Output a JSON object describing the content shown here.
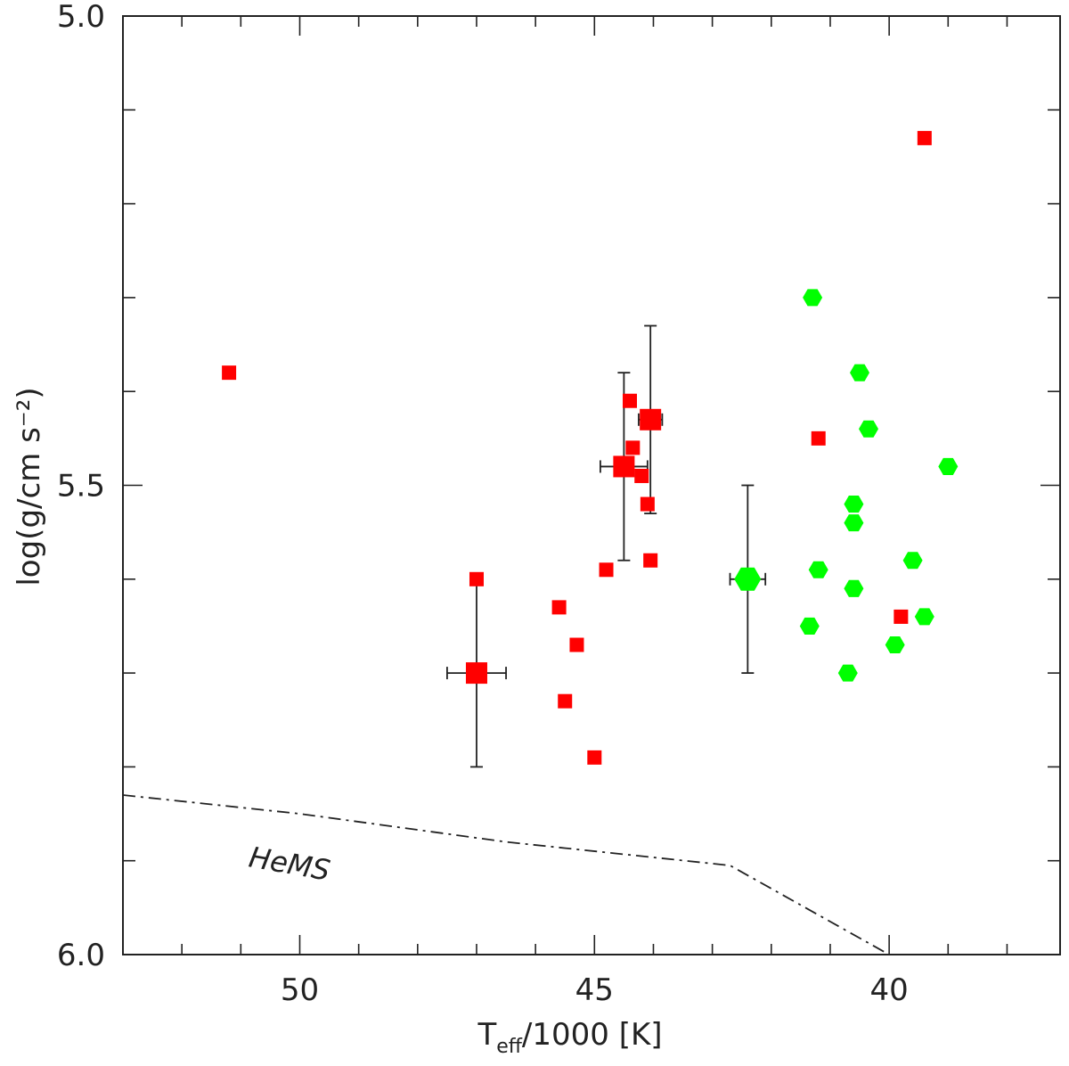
{
  "chart_data": {
    "type": "scatter",
    "title": "",
    "xlabel": {
      "main": "T",
      "sub": "eff",
      "rest": "/1000 [K]"
    },
    "ylabel": "log(g/cm s⁻²)",
    "xlim": [
      53.0,
      37.1
    ],
    "ylim": [
      6.0,
      5.0
    ],
    "x_ticks": [
      "50",
      "45",
      "40"
    ],
    "y_ticks": [
      "5.0",
      "5.5",
      "6.0"
    ],
    "grid": false,
    "series": [
      {
        "name": "red squares",
        "marker": "square",
        "color": "#ff0000",
        "points": [
          {
            "x": 51.2,
            "y": 5.38
          },
          {
            "x": 47.0,
            "y": 5.6
          },
          {
            "x": 45.6,
            "y": 5.63
          },
          {
            "x": 45.3,
            "y": 5.67
          },
          {
            "x": 45.5,
            "y": 5.73
          },
          {
            "x": 45.0,
            "y": 5.79
          },
          {
            "x": 44.8,
            "y": 5.59
          },
          {
            "x": 44.4,
            "y": 5.41
          },
          {
            "x": 44.35,
            "y": 5.46
          },
          {
            "x": 44.2,
            "y": 5.49
          },
          {
            "x": 44.1,
            "y": 5.52
          },
          {
            "x": 44.05,
            "y": 5.58
          },
          {
            "x": 44.05,
            "y": 5.43
          },
          {
            "x": 41.2,
            "y": 5.45
          },
          {
            "x": 39.8,
            "y": 5.64
          },
          {
            "x": 39.4,
            "y": 5.13
          }
        ]
      },
      {
        "name": "green hexagons",
        "marker": "hexagon",
        "color": "#00ff00",
        "points": [
          {
            "x": 41.3,
            "y": 5.3
          },
          {
            "x": 40.5,
            "y": 5.38
          },
          {
            "x": 40.35,
            "y": 5.44
          },
          {
            "x": 41.2,
            "y": 5.59
          },
          {
            "x": 40.6,
            "y": 5.52
          },
          {
            "x": 40.6,
            "y": 5.54
          },
          {
            "x": 40.6,
            "y": 5.61
          },
          {
            "x": 41.35,
            "y": 5.65
          },
          {
            "x": 40.7,
            "y": 5.7
          },
          {
            "x": 39.0,
            "y": 5.48
          },
          {
            "x": 39.6,
            "y": 5.58
          },
          {
            "x": 39.4,
            "y": 5.64
          },
          {
            "x": 39.9,
            "y": 5.67
          }
        ]
      }
    ],
    "error_bar_points": [
      {
        "x": 47.0,
        "y": 5.7,
        "xerr": 0.5,
        "yerr": 0.1,
        "marker": "square",
        "color": "#ff0000"
      },
      {
        "x": 44.5,
        "y": 5.48,
        "xerr": 0.4,
        "yerr": 0.1,
        "marker": "square",
        "color": "#ff0000"
      },
      {
        "x": 44.05,
        "y": 5.43,
        "xerr": 0.2,
        "yerr": 0.1,
        "marker": "square",
        "color": "#ff0000"
      },
      {
        "x": 42.4,
        "y": 5.6,
        "xerr": 0.3,
        "yerr": 0.1,
        "marker": "hexagon",
        "color": "#00ff00"
      }
    ],
    "hems_line": {
      "label": "HeMS",
      "style": "dash-dot",
      "points": [
        {
          "x": 53.0,
          "y": 5.83
        },
        {
          "x": 50.0,
          "y": 5.85
        },
        {
          "x": 46.5,
          "y": 5.88
        },
        {
          "x": 42.7,
          "y": 5.905
        },
        {
          "x": 40.0,
          "y": 6.0
        }
      ]
    }
  }
}
